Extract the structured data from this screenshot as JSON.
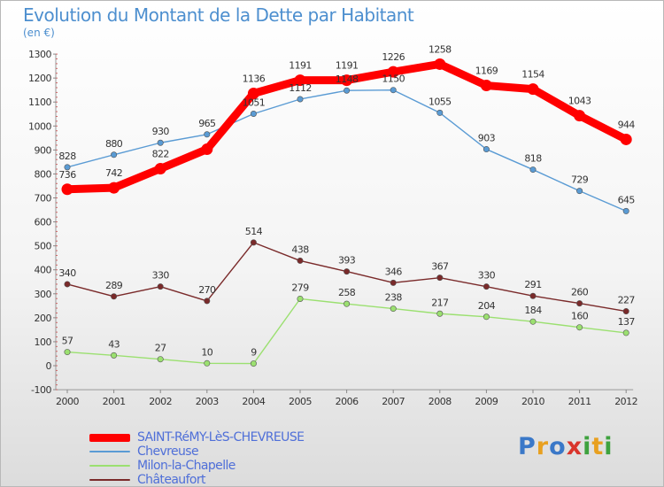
{
  "title": "Evolution du Montant de la Dette par Habitant",
  "subtitle": "(en €)",
  "logo": {
    "text": "Proxiti",
    "colors": [
      "#3a78c8",
      "#e8a020",
      "#3ea23e",
      "#d9342b"
    ]
  },
  "chart_data": {
    "type": "line",
    "x": [
      "2000",
      "2001",
      "2002",
      "2003",
      "2004",
      "2005",
      "2006",
      "2007",
      "2008",
      "2009",
      "2010",
      "2011",
      "2012"
    ],
    "ylim": [
      -100,
      1300
    ],
    "yticks": [
      "-100",
      "0",
      "100",
      "200",
      "300",
      "400",
      "500",
      "600",
      "700",
      "800",
      "900",
      "1000",
      "1100",
      "1200",
      "1300"
    ],
    "grid": false,
    "legend_position": "bottom-left",
    "series": [
      {
        "name": "SAINT-RéMY-LèS-CHEVREUSE",
        "color": "#ff0000",
        "emphasis": true,
        "values": [
          736,
          742,
          822,
          903,
          1136,
          1191,
          1191,
          1226,
          1258,
          1169,
          1154,
          1043,
          944
        ],
        "labels": [
          "736",
          "742",
          "822",
          "",
          "1136",
          "1191",
          "1191",
          "1226",
          "1258",
          "1169",
          "1154",
          "1043",
          "944"
        ]
      },
      {
        "name": "Chevreuse",
        "color": "#5a9bd4",
        "values": [
          828,
          880,
          930,
          965,
          1051,
          1112,
          1148,
          1150,
          1055,
          903,
          818,
          729,
          645
        ],
        "labels": [
          "828",
          "880",
          "930",
          "965",
          "1051",
          "1112",
          "1148",
          "1150",
          "1055",
          "903",
          "818",
          "729",
          "645"
        ]
      },
      {
        "name": "Milon-la-Chapelle",
        "color": "#9be070",
        "values": [
          57,
          43,
          27,
          10,
          9,
          279,
          258,
          238,
          217,
          204,
          184,
          160,
          137
        ],
        "labels": [
          "57",
          "43",
          "27",
          "10",
          "9",
          "279",
          "258",
          "238",
          "217",
          "204",
          "184",
          "160",
          "137"
        ]
      },
      {
        "name": "Châteaufort",
        "color": "#7a2a2a",
        "values": [
          340,
          289,
          330,
          270,
          514,
          438,
          393,
          346,
          367,
          330,
          291,
          260,
          227
        ],
        "labels": [
          "340",
          "289",
          "330",
          "270",
          "514",
          "438",
          "393",
          "346",
          "367",
          "330",
          "291",
          "260",
          "227"
        ]
      }
    ]
  }
}
